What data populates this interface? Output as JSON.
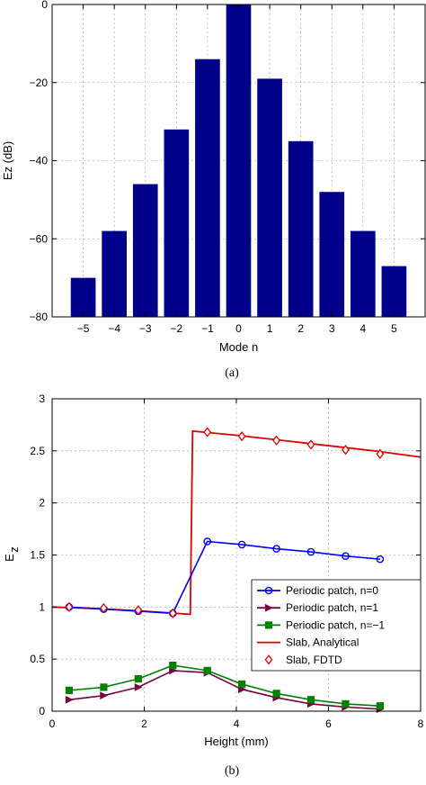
{
  "chart_data": [
    {
      "type": "bar",
      "caption": "(a)",
      "xlabel": "Mode n",
      "ylabel": "Ez (dB)",
      "categories": [
        "−5",
        "−4",
        "−3",
        "−2",
        "−1",
        "0",
        "1",
        "2",
        "3",
        "4",
        "5"
      ],
      "x": [
        -5,
        -4,
        -3,
        -2,
        -1,
        0,
        1,
        2,
        3,
        4,
        5
      ],
      "values": [
        -70,
        -58,
        -46,
        -32,
        -14,
        0,
        -19,
        -35,
        -48,
        -58,
        -67
      ],
      "xlim": [
        -6,
        6
      ],
      "ylim": [
        -80,
        0
      ],
      "yticks": [
        0,
        -20,
        -40,
        -60,
        -80
      ],
      "ytick_labels": [
        "0",
        "−20",
        "−40",
        "−60",
        "−80"
      ],
      "grid": true,
      "bar_color": "#00008b"
    },
    {
      "type": "line",
      "caption": "(b)",
      "xlabel": "Height (mm)",
      "ylabel": "E",
      "ylabel_subscript": "z",
      "xlim": [
        0,
        8
      ],
      "ylim": [
        0,
        3
      ],
      "xticks": [
        0,
        2,
        4,
        6,
        8
      ],
      "yticks": [
        0,
        0.5,
        1,
        1.5,
        2,
        2.5,
        3
      ],
      "ytick_labels": [
        "0",
        "0.5",
        "1",
        "1.5",
        "2",
        "2.5",
        "3"
      ],
      "grid": true,
      "legend_position": "right",
      "series": [
        {
          "name": "Periodic patch, n=0",
          "color": "#0000ff",
          "marker": "circle",
          "x": [
            0.37,
            1.12,
            1.87,
            2.62,
            3.37,
            4.12,
            4.87,
            5.62,
            6.37,
            7.12
          ],
          "y": [
            1.0,
            0.98,
            0.96,
            0.94,
            1.63,
            1.6,
            1.56,
            1.53,
            1.49,
            1.46
          ]
        },
        {
          "name": "Periodic patch, n=1",
          "color": "#7a0040",
          "marker": "triangle-right",
          "x": [
            0.37,
            1.12,
            1.87,
            2.62,
            3.37,
            4.12,
            4.87,
            5.62,
            6.37,
            7.12
          ],
          "y": [
            0.11,
            0.15,
            0.23,
            0.39,
            0.37,
            0.21,
            0.13,
            0.07,
            0.04,
            0.02
          ]
        },
        {
          "name": "Periodic patch, n=−1",
          "color": "#008000",
          "marker": "square",
          "x": [
            0.37,
            1.12,
            1.87,
            2.62,
            3.37,
            4.12,
            4.87,
            5.62,
            6.37,
            7.12
          ],
          "y": [
            0.2,
            0.23,
            0.31,
            0.44,
            0.39,
            0.26,
            0.17,
            0.11,
            0.07,
            0.05
          ]
        },
        {
          "name": "Slab, Analytical",
          "color": "#e00000",
          "marker": "none",
          "x": [
            0,
            1,
            2,
            3,
            3.05,
            4,
            5,
            6,
            7,
            8
          ],
          "y": [
            1.0,
            0.985,
            0.96,
            0.93,
            2.69,
            2.65,
            2.6,
            2.55,
            2.5,
            2.44
          ]
        },
        {
          "name": "Slab, FDTD",
          "color": "#e00000",
          "marker": "diamond",
          "x": [
            0.37,
            1.12,
            1.87,
            2.62,
            3.37,
            4.12,
            4.87,
            5.62,
            6.37,
            7.12
          ],
          "y": [
            1.0,
            0.99,
            0.97,
            0.94,
            2.68,
            2.64,
            2.6,
            2.56,
            2.51,
            2.47
          ]
        }
      ]
    }
  ]
}
